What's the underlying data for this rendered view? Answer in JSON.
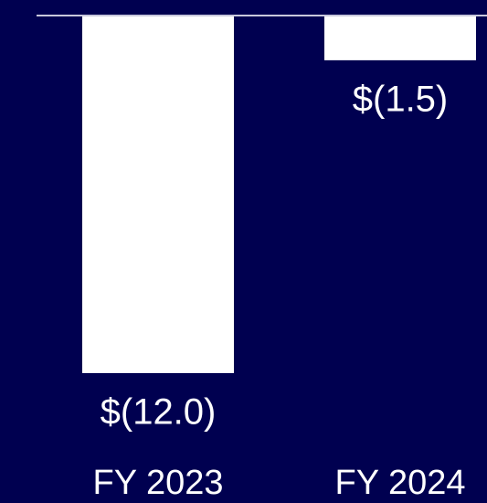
{
  "chart_data": {
    "type": "bar",
    "categories": [
      "FY 2023",
      "FY 2024"
    ],
    "values": [
      -12.0,
      -1.5
    ],
    "value_labels": [
      "$(12.0)",
      "$(1.5)"
    ],
    "color": "#ffffff",
    "ylim": [
      -12,
      0
    ]
  }
}
